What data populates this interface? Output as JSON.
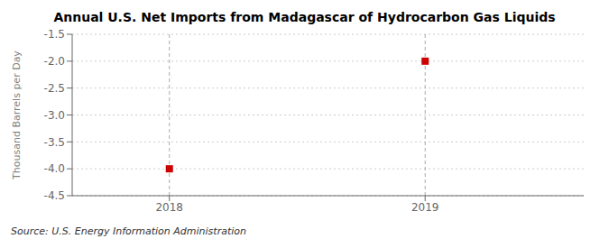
{
  "chart_data": {
    "type": "scatter",
    "title": "Annual U.S. Net Imports from Madagascar of Hydrocarbon Gas Liquids",
    "ylabel": "Thousand Barrels per Day",
    "source": "Source: U.S. Energy Information Administration",
    "x": [
      2018,
      2019
    ],
    "values": [
      -4.0,
      -2.0
    ],
    "color": "#cc0000",
    "marker": "square",
    "xlim": [
      2017.62,
      2019.62
    ],
    "ylim": [
      -4.5,
      -1.5
    ],
    "xticks": [
      2018,
      2019
    ],
    "yticks": [
      -1.5,
      {
        "value": -2.0,
        "label": "-2.0"
      },
      -2.5,
      {
        "value": -3.0,
        "label": "-3.0"
      },
      -3.5,
      {
        "value": -4.0,
        "label": "-4.0"
      },
      -4.5
    ],
    "grid": true
  }
}
